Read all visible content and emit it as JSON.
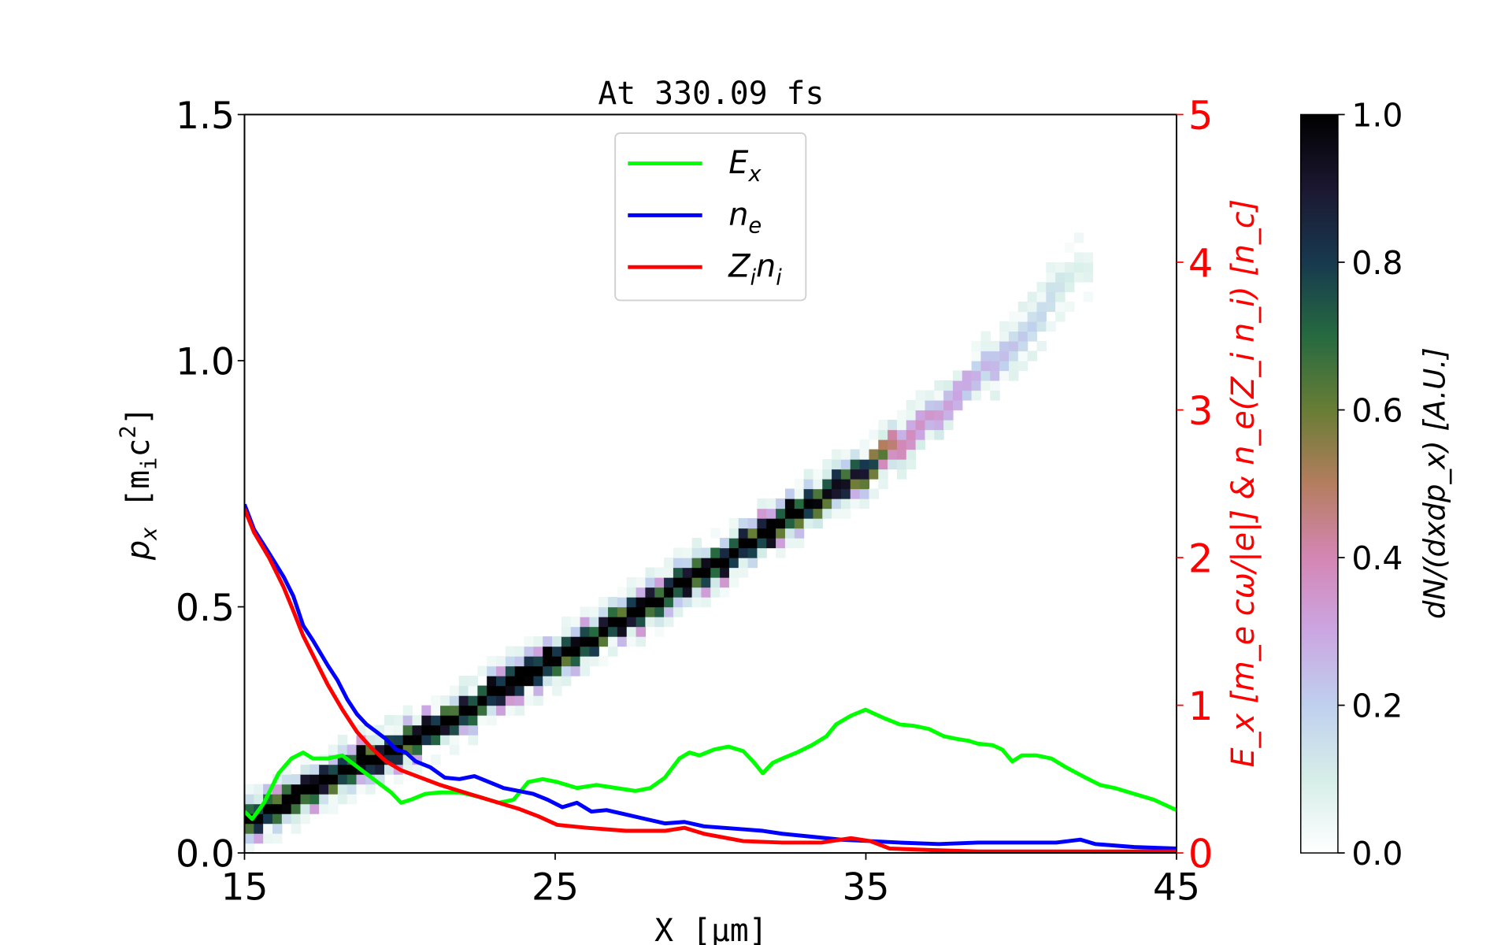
{
  "chart_data": {
    "type": "line",
    "title": "At 330.09 fs",
    "xlabel": "X [μm]",
    "ylabel_left": {
      "main": "p",
      "sub": "x",
      "unit": "[m",
      "unit_sub": "i",
      "unit_rest": "c",
      "unit_sup": "2",
      "close": "]"
    },
    "ylabel_right": "E_x [m_e cω/|e|] & n_e(Z_i n_i) [n_c]",
    "colorbar_label": "dN/(dxdp_x) [A.U.]",
    "xlim": [
      15,
      45
    ],
    "ylim_left": [
      0,
      1.5
    ],
    "ylim_right": [
      0,
      5
    ],
    "colorbar_lim": [
      0,
      1
    ],
    "xticks": [
      "15",
      "25",
      "35",
      "45"
    ],
    "yticks_left": [
      "0.0",
      "0.5",
      "1.0",
      "1.5"
    ],
    "yticks_right": [
      "0",
      "1",
      "2",
      "3",
      "4",
      "5"
    ],
    "colorbar_ticks": [
      "0.0",
      "0.2",
      "0.4",
      "0.6",
      "0.8",
      "1.0"
    ],
    "legend_placement": "upper-center",
    "right_axis_color": "#ff0000",
    "colormap": "cubehelix_r",
    "phase_space_ridge": {
      "x": [
        15,
        20,
        25,
        30,
        33,
        35,
        36,
        38,
        40,
        42
      ],
      "px": [
        0.05,
        0.21,
        0.38,
        0.57,
        0.69,
        0.77,
        0.82,
        0.92,
        1.04,
        1.19
      ],
      "intensity": [
        1.0,
        1.0,
        1.0,
        1.0,
        1.0,
        0.9,
        0.4,
        0.3,
        0.22,
        0.08
      ]
    },
    "series": [
      {
        "name": "E_x",
        "legend": {
          "main": "E",
          "sub": "x"
        },
        "color": "#00ff00",
        "axis": "right",
        "x": [
          15.0,
          15.25,
          15.63,
          16.1,
          16.51,
          16.89,
          17.2,
          17.68,
          18.15,
          18.46,
          19.09,
          19.72,
          20.04,
          20.35,
          20.82,
          21.3,
          21.92,
          22.55,
          23.18,
          23.66,
          24.13,
          24.6,
          25.07,
          25.7,
          26.33,
          26.96,
          27.59,
          28.06,
          28.53,
          29.0,
          29.32,
          29.64,
          30.11,
          30.58,
          31.05,
          31.37,
          31.68,
          32.0,
          32.31,
          32.78,
          33.26,
          33.73,
          34.04,
          34.52,
          34.99,
          35.3,
          35.62,
          36.09,
          36.56,
          37.03,
          37.51,
          37.98,
          38.29,
          38.61,
          39.08,
          39.39,
          39.71,
          40.02,
          40.5,
          40.97,
          41.44,
          42.07,
          42.54,
          43.01,
          43.64,
          44.27,
          45.0
        ],
        "y": [
          0.28,
          0.23,
          0.34,
          0.54,
          0.64,
          0.68,
          0.64,
          0.64,
          0.66,
          0.61,
          0.51,
          0.41,
          0.34,
          0.36,
          0.4,
          0.41,
          0.41,
          0.38,
          0.34,
          0.36,
          0.48,
          0.5,
          0.48,
          0.44,
          0.46,
          0.44,
          0.42,
          0.44,
          0.51,
          0.64,
          0.68,
          0.66,
          0.7,
          0.72,
          0.69,
          0.62,
          0.54,
          0.61,
          0.64,
          0.68,
          0.73,
          0.79,
          0.87,
          0.93,
          0.97,
          0.94,
          0.91,
          0.87,
          0.86,
          0.84,
          0.79,
          0.77,
          0.76,
          0.74,
          0.73,
          0.7,
          0.62,
          0.66,
          0.66,
          0.64,
          0.58,
          0.51,
          0.46,
          0.44,
          0.4,
          0.36,
          0.29
        ]
      },
      {
        "name": "n_e",
        "legend": {
          "main": "n",
          "sub": "e"
        },
        "color": "#0000ff",
        "axis": "right",
        "x": [
          15,
          15.31,
          15.79,
          16.26,
          16.57,
          16.89,
          17.2,
          17.68,
          17.99,
          18.31,
          18.62,
          18.93,
          19.25,
          19.56,
          19.88,
          20.19,
          20.51,
          20.98,
          21.45,
          21.92,
          22.4,
          22.87,
          23.34,
          23.81,
          24.29,
          24.76,
          25.23,
          25.7,
          26.17,
          26.65,
          27.28,
          27.91,
          28.53,
          29.16,
          29.79,
          30.42,
          31.05,
          31.68,
          32.31,
          33.26,
          34.2,
          35.14,
          36.09,
          37.35,
          38.61,
          39.87,
          41.13,
          41.91,
          42.38,
          43.64,
          45
        ],
        "y": [
          2.36,
          2.19,
          2.03,
          1.87,
          1.74,
          1.54,
          1.44,
          1.27,
          1.17,
          1.04,
          0.94,
          0.87,
          0.82,
          0.77,
          0.7,
          0.68,
          0.62,
          0.58,
          0.51,
          0.5,
          0.52,
          0.48,
          0.44,
          0.42,
          0.4,
          0.36,
          0.31,
          0.34,
          0.28,
          0.29,
          0.26,
          0.23,
          0.2,
          0.21,
          0.18,
          0.17,
          0.16,
          0.15,
          0.13,
          0.11,
          0.09,
          0.08,
          0.07,
          0.06,
          0.07,
          0.07,
          0.07,
          0.09,
          0.06,
          0.04,
          0.03
        ]
      },
      {
        "name": "Z_i n_i",
        "legend": {
          "main": "Z",
          "sub": "i",
          "main2": "n",
          "sub2": "i"
        },
        "color": "#ff0000",
        "axis": "right",
        "x": [
          15,
          15.31,
          15.79,
          16.26,
          16.57,
          16.89,
          17.2,
          17.68,
          18.15,
          18.62,
          19.09,
          19.56,
          20.04,
          20.67,
          21.3,
          21.92,
          22.55,
          23.18,
          23.81,
          24.44,
          25.07,
          26.02,
          27.28,
          28.53,
          29.16,
          29.79,
          31.05,
          32.31,
          33.57,
          34.52,
          35.14,
          35.77,
          37.03,
          38.61,
          41.75,
          45
        ],
        "y": [
          2.33,
          2.17,
          2.0,
          1.8,
          1.64,
          1.47,
          1.34,
          1.14,
          0.97,
          0.82,
          0.71,
          0.62,
          0.56,
          0.51,
          0.46,
          0.42,
          0.38,
          0.34,
          0.3,
          0.25,
          0.19,
          0.17,
          0.15,
          0.15,
          0.17,
          0.13,
          0.08,
          0.07,
          0.07,
          0.1,
          0.08,
          0.03,
          0.02,
          0.01,
          0.01,
          0.01
        ]
      }
    ]
  }
}
